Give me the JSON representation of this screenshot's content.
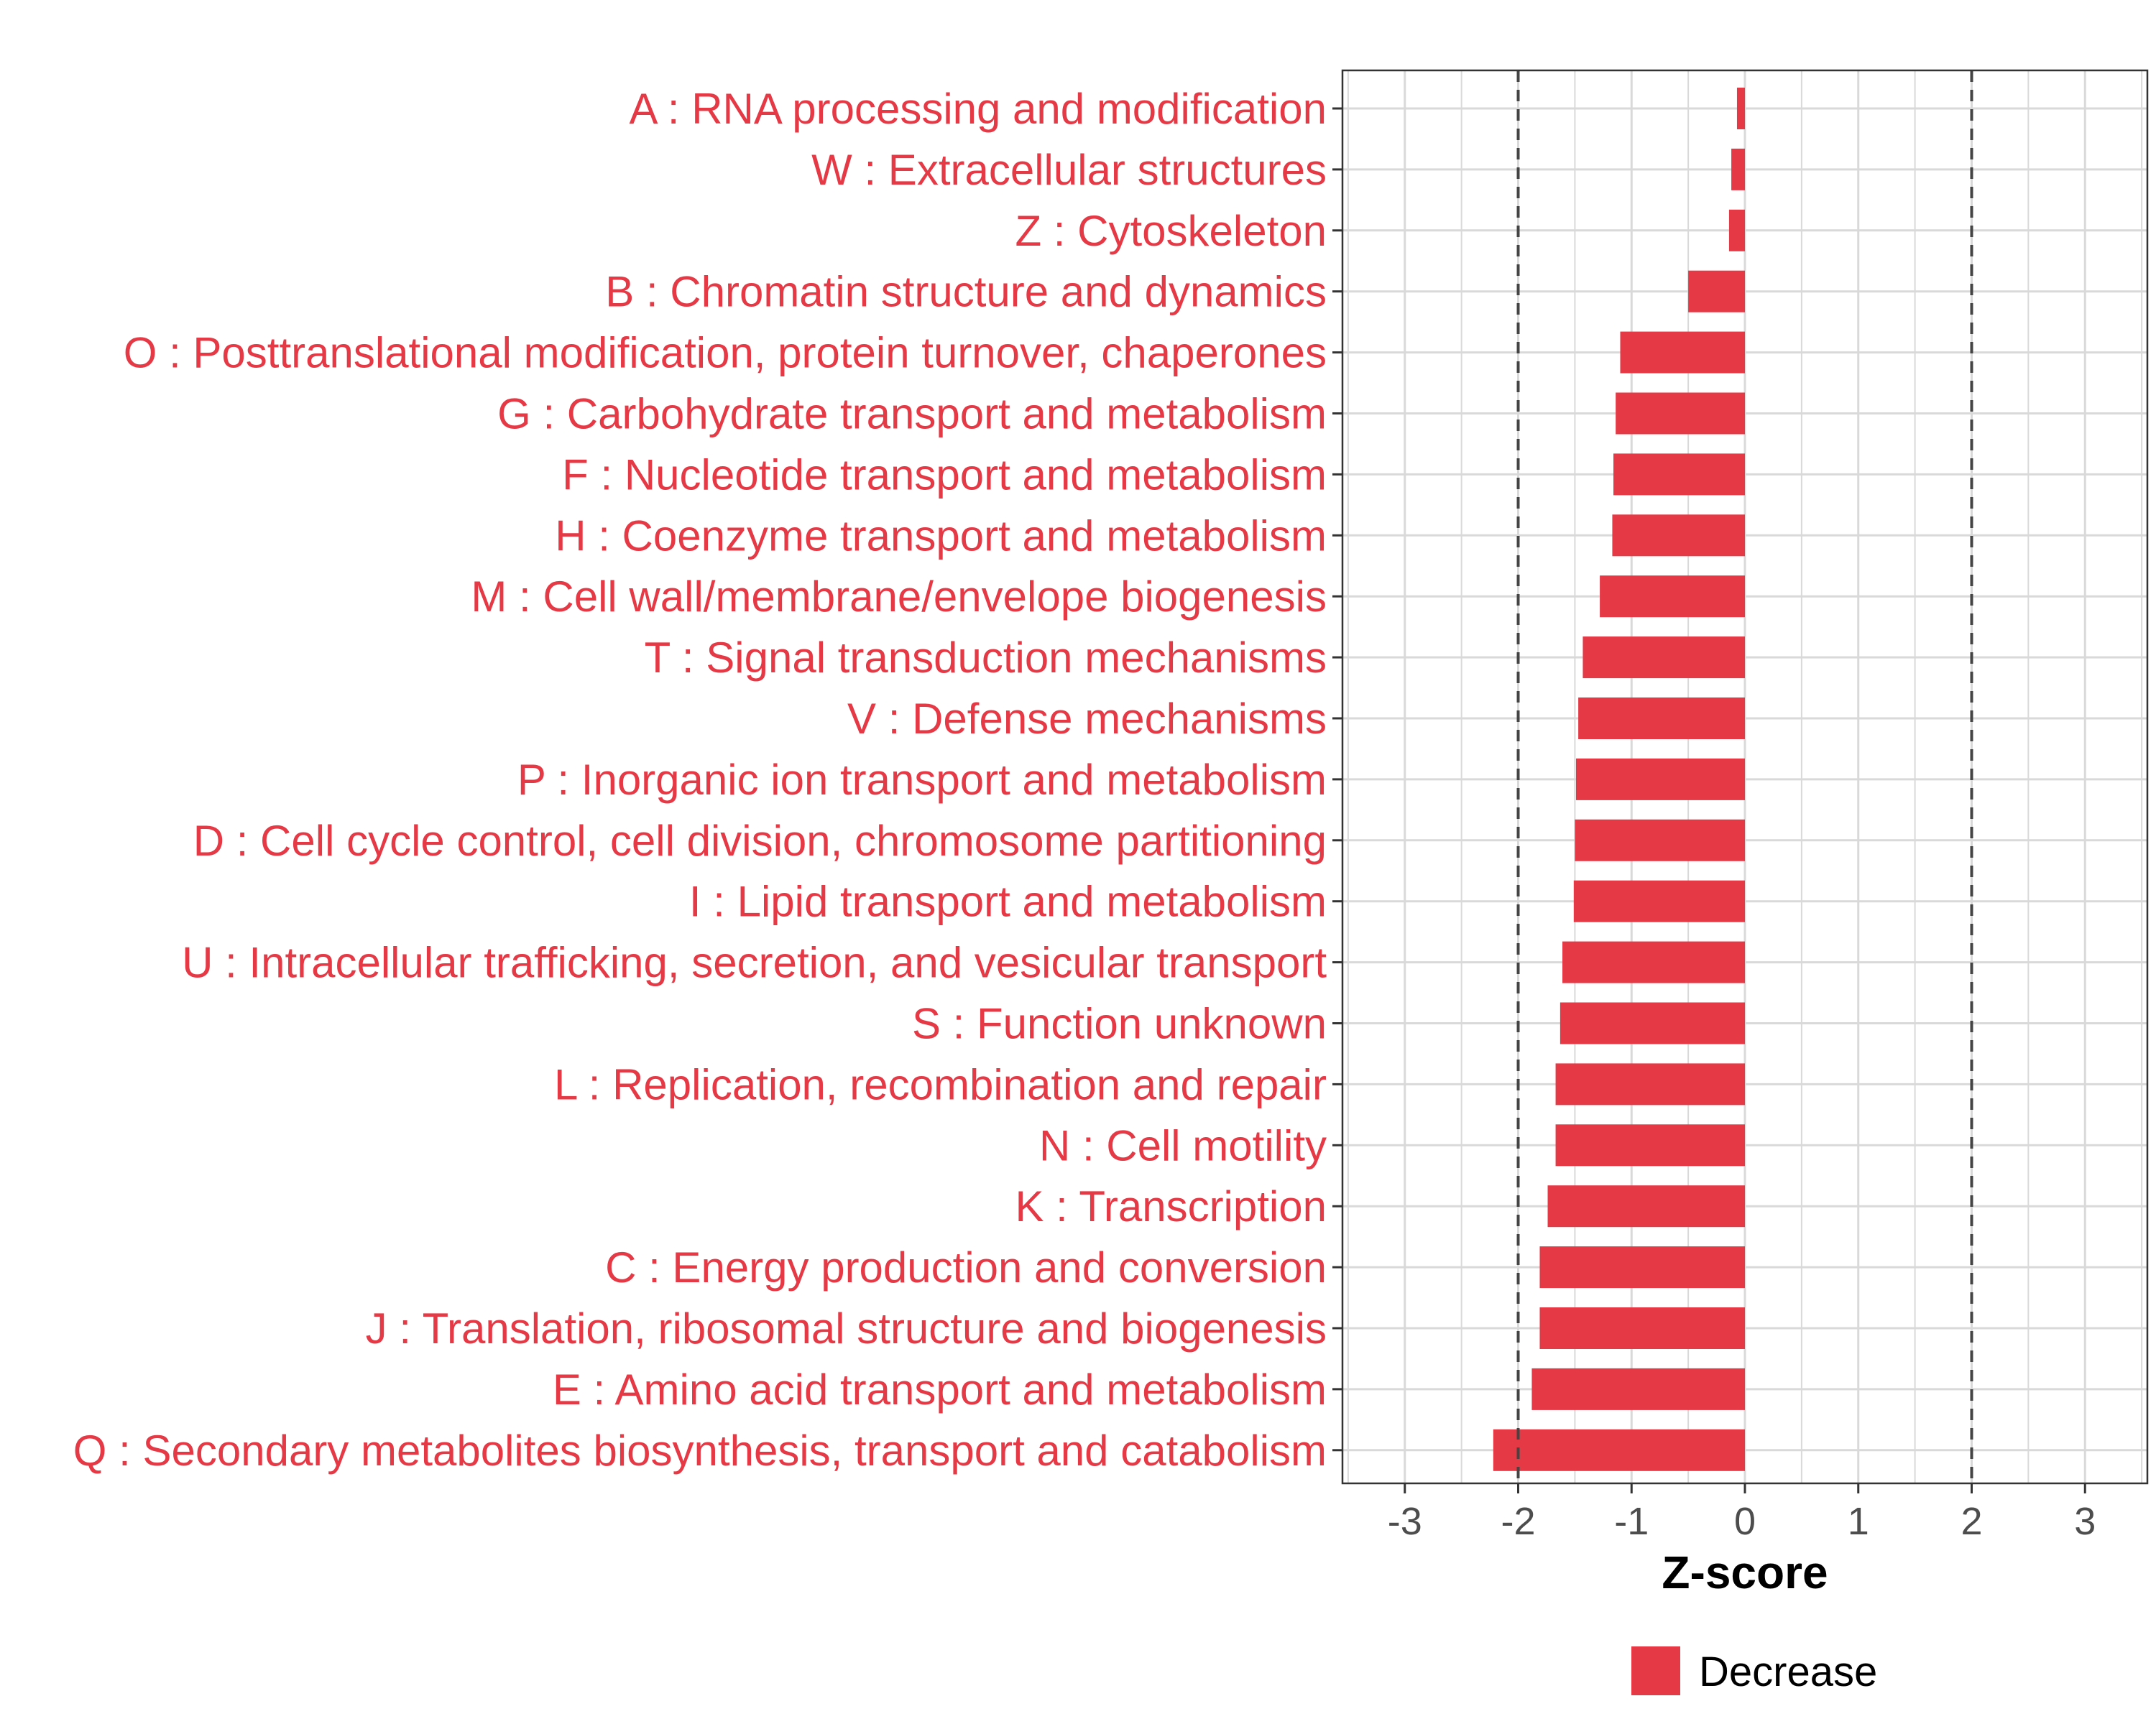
{
  "chart_data": {
    "type": "bar",
    "orientation": "horizontal",
    "title": "",
    "xlabel": "Z-score",
    "ylabel": "",
    "xlim": [
      -3.55,
      3.55
    ],
    "xticks": [
      -3,
      -2,
      -1,
      0,
      1,
      2,
      3
    ],
    "xtick_labels": [
      "-3",
      "-2",
      "-1",
      "0",
      "1",
      "2",
      "3"
    ],
    "reference_lines": [
      -2,
      2
    ],
    "grid": true,
    "legend_position": "bottom",
    "categories": [
      "A : RNA processing and modification",
      "W : Extracellular structures",
      "Z : Cytoskeleton",
      "B : Chromatin structure and dynamics",
      "O : Posttranslational modification, protein turnover, chaperones",
      "G : Carbohydrate transport and metabolism",
      "F : Nucleotide transport and metabolism",
      "H : Coenzyme transport and metabolism",
      "M : Cell wall/membrane/envelope biogenesis",
      "T : Signal transduction mechanisms",
      "V : Defense mechanisms",
      "P : Inorganic ion transport and metabolism",
      "D : Cell cycle control, cell division, chromosome partitioning",
      "I : Lipid transport and metabolism",
      "U : Intracellular trafficking, secretion, and vesicular transport",
      "S : Function unknown",
      "L : Replication, recombination and repair",
      "N : Cell motility",
      "K : Transcription",
      "C : Energy production and conversion",
      "J : Translation, ribosomal structure and biogenesis",
      "E : Amino acid transport and metabolism",
      "Q : Secondary metabolites biosynthesis, transport and catabolism"
    ],
    "series": [
      {
        "name": "Decrease",
        "color": "#e63946",
        "values": [
          -0.07,
          -0.12,
          -0.14,
          -0.5,
          -1.1,
          -1.14,
          -1.16,
          -1.17,
          -1.28,
          -1.43,
          -1.47,
          -1.49,
          -1.5,
          -1.51,
          -1.61,
          -1.63,
          -1.67,
          -1.67,
          -1.74,
          -1.81,
          -1.81,
          -1.88,
          -2.22
        ]
      }
    ],
    "legend": [
      {
        "label": "Decrease",
        "color": "#e63946"
      }
    ]
  }
}
